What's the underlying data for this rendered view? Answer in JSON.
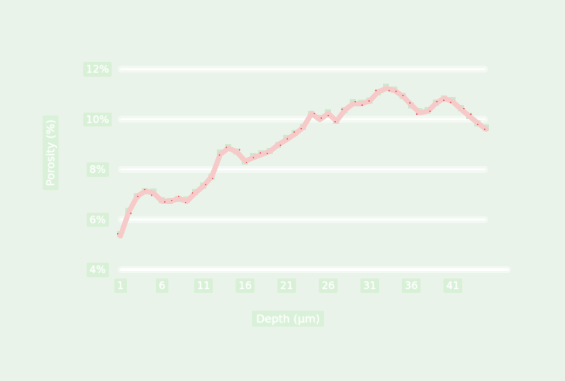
{
  "chart_data": {
    "type": "line",
    "title": "",
    "xlabel": "Depth (µm)",
    "ylabel": "Porosity (%)",
    "legend": null,
    "grid": true,
    "x_ticks": [
      1,
      6,
      11,
      16,
      21,
      26,
      31,
      36,
      41
    ],
    "y_ticks": [
      {
        "value": 12,
        "label": "12%"
      },
      {
        "value": 10,
        "label": "10%"
      },
      {
        "value": 8,
        "label": "8%"
      },
      {
        "value": 6,
        "label": "6%"
      },
      {
        "value": 4,
        "label": "4%"
      }
    ],
    "xlim": [
      0,
      46
    ],
    "ylim": [
      4,
      12.5
    ],
    "x": [
      1,
      2,
      3,
      4,
      5,
      6,
      7,
      8,
      9,
      10,
      11,
      12,
      13,
      14,
      15,
      16,
      17,
      18,
      19,
      20,
      21,
      22,
      23,
      24,
      25,
      26,
      27,
      28,
      29,
      30,
      31,
      32,
      33,
      34,
      35,
      36,
      37,
      38,
      39,
      40,
      41,
      42,
      43,
      44,
      45
    ],
    "values": [
      5.35,
      6.3,
      6.92,
      7.14,
      7.05,
      6.73,
      6.73,
      6.84,
      6.73,
      7.06,
      7.34,
      7.72,
      8.6,
      8.85,
      8.7,
      8.33,
      8.47,
      8.6,
      8.72,
      8.99,
      9.19,
      9.41,
      9.68,
      10.23,
      9.99,
      10.23,
      9.93,
      10.37,
      10.62,
      10.62,
      10.73,
      11.09,
      11.23,
      11.14,
      10.92,
      10.57,
      10.26,
      10.32,
      10.65,
      10.84,
      10.7,
      10.4,
      10.12,
      9.85,
      9.6
    ],
    "series_name": "porosity-vs-depth"
  },
  "colors": {
    "background": "#eaf3e9",
    "gridline": "#ffffff",
    "gridline_glow": "rgba(255,255,255,0.40)",
    "line": "#f7caca",
    "marker_square": "#cde9cd",
    "speckle_dot": "#e57373",
    "tick_text": "#ffffff",
    "label_box": "#d7f0d6"
  }
}
